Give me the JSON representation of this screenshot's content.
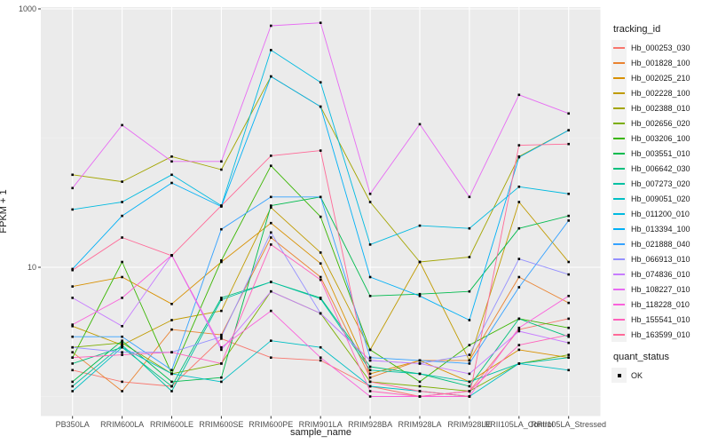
{
  "figure": {
    "background": "#FFFFFF",
    "panel_background": "#EBEBEB",
    "grid_major_color": "#FFFFFF",
    "grid_minor_color": "#F3F3F3",
    "tick_color": "#333333",
    "tick_label_color": "#4D4D4D",
    "point_color": "#000000"
  },
  "chart_data": {
    "type": "line",
    "title": "",
    "xlabel": "sample_name",
    "ylabel": "FPKM + 1",
    "y_scale": "log10",
    "ylim": [
      0.7,
      1050
    ],
    "grid": true,
    "legend_position": "right",
    "point_shape": "square",
    "y_major_ticks": [
      {
        "value": 1000,
        "label": "1000"
      },
      {
        "value": 10,
        "label": "10"
      }
    ],
    "y_minor_gridlines": [
      100,
      1
    ],
    "x_categories": [
      "PB350LA",
      "RRIM600LA",
      "RRIM600LE",
      "RRIM600SE",
      "RRIM600PE",
      "RRIM901LA",
      "RRIM928BA",
      "RRIM928LA",
      "RRIM928LE",
      "RRII105LA_Control",
      "RRII105LA_Stressed"
    ],
    "series": [
      {
        "name": "Hb_000253_030",
        "color": "#F8766D",
        "values": [
          1.6,
          1.3,
          1.2,
          2.8,
          2.0,
          1.9,
          1.2,
          1.0,
          1.1,
          3.3,
          4.0
        ]
      },
      {
        "name": "Hb_001828_100",
        "color": "#EA8331",
        "values": [
          2.2,
          1.1,
          3.3,
          3.0,
          17,
          8.4,
          1.4,
          1.9,
          1.9,
          8.4,
          5.3
        ]
      },
      {
        "name": "Hb_002025_210",
        "color": "#D89000",
        "values": [
          7.1,
          8.4,
          5.2,
          11,
          22,
          10.7,
          1.5,
          1.9,
          1.3,
          2.3,
          2.0
        ]
      },
      {
        "name": "Hb_002228_100",
        "color": "#C09B00",
        "values": [
          3.5,
          2.5,
          3.9,
          4.6,
          29,
          13,
          2.3,
          11,
          1.9,
          32,
          11
        ]
      },
      {
        "name": "Hb_002388_010",
        "color": "#A3A500",
        "values": [
          52,
          46,
          72,
          57,
          300,
          175,
          32,
          11,
          12,
          72,
          115
        ]
      },
      {
        "name": "Hb_002656_020",
        "color": "#7CAE00",
        "values": [
          2.4,
          2.6,
          1.5,
          1.8,
          6.5,
          4.4,
          1.3,
          1.2,
          1.1,
          1.8,
          2.1
        ]
      },
      {
        "name": "Hb_003206_100",
        "color": "#39B600",
        "values": [
          2.0,
          11,
          1.5,
          11.3,
          61,
          24.6,
          2.3,
          1.3,
          2.5,
          4.0,
          3.4
        ]
      },
      {
        "name": "Hb_003551_010",
        "color": "#00BB4E",
        "values": [
          1.3,
          2.7,
          1.3,
          1.4,
          30,
          35,
          6.0,
          6.2,
          6.5,
          20,
          25
        ]
      },
      {
        "name": "Hb_006642_030",
        "color": "#00BF7D",
        "values": [
          1.8,
          2.4,
          1.2,
          5.8,
          7.7,
          5.8,
          1.7,
          1.5,
          1.2,
          4.0,
          2.9
        ]
      },
      {
        "name": "Hb_007273_020",
        "color": "#00C1A3",
        "values": [
          1.2,
          2.5,
          1.1,
          5.6,
          7.7,
          5.7,
          1.6,
          1.5,
          1.3,
          1.8,
          2.0
        ]
      },
      {
        "name": "Hb_009051_020",
        "color": "#00BFC4",
        "values": [
          1.1,
          2.4,
          1.5,
          1.3,
          2.7,
          2.4,
          1.2,
          1.1,
          1.0,
          1.8,
          1.6
        ]
      },
      {
        "name": "Hb_011200_010",
        "color": "#00BAE0",
        "values": [
          28,
          32,
          52,
          30,
          480,
          270,
          15,
          21,
          20,
          42,
          37
        ]
      },
      {
        "name": "Hb_013394_100",
        "color": "#00B0F6",
        "values": [
          9.7,
          25,
          45,
          29.5,
          300,
          175,
          8.4,
          6.0,
          3.9,
          71,
          115
        ]
      },
      {
        "name": "Hb_021888_040",
        "color": "#35A2FF",
        "values": [
          2.9,
          2.9,
          1.6,
          19.7,
          35,
          35,
          2.0,
          1.9,
          1.8,
          7.0,
          23
        ]
      },
      {
        "name": "Hb_066913_010",
        "color": "#9590FF",
        "values": [
          2.4,
          2.2,
          2.2,
          2.9,
          18.6,
          4.4,
          1.9,
          1.8,
          2.1,
          11.6,
          8.8
        ]
      },
      {
        "name": "Hb_074836_010",
        "color": "#C77CFF",
        "values": [
          5.8,
          3.5,
          12.4,
          2.3,
          6.5,
          4.4,
          1.9,
          1.8,
          1.5,
          3.2,
          2.6
        ]
      },
      {
        "name": "Hb_108227_010",
        "color": "#E76BF3",
        "values": [
          41,
          126,
          66,
          66,
          740,
          780,
          37,
          128,
          35,
          216,
          155
        ]
      },
      {
        "name": "Hb_118228_010",
        "color": "#FA62DB",
        "values": [
          3.6,
          5.8,
          12.4,
          2.4,
          4.6,
          2.0,
          1.0,
          1.0,
          1.0,
          3.4,
          6.0
        ]
      },
      {
        "name": "Hb_155541_010",
        "color": "#FF62BC",
        "values": [
          2.0,
          2.1,
          2.2,
          1.8,
          15,
          8.0,
          1.1,
          1.0,
          1.1,
          2.5,
          3.0
        ]
      },
      {
        "name": "Hb_163599_010",
        "color": "#FF6A98",
        "values": [
          9.5,
          17,
          12.3,
          30,
          73,
          80,
          1.3,
          1.1,
          1.0,
          88,
          90
        ]
      }
    ]
  },
  "legend": {
    "tracking_title": "tracking_id",
    "quant_title": "quant_status",
    "quant_items": [
      {
        "label": "OK"
      }
    ]
  }
}
